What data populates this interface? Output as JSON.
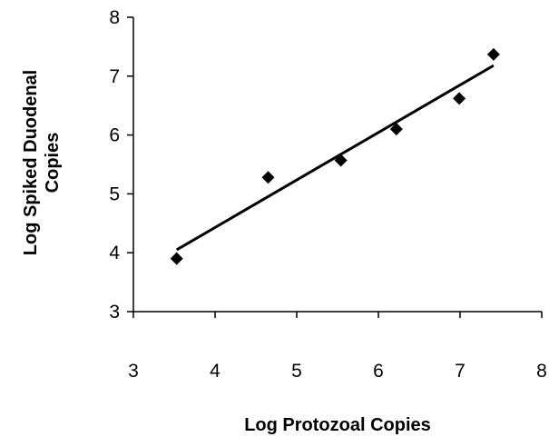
{
  "chart_data": {
    "type": "scatter",
    "title": "",
    "xlabel": "Log Protozoal Copies",
    "ylabel_lines": [
      "Log Spiked Duodenal",
      "Copies"
    ],
    "xlim": [
      3,
      8
    ],
    "ylim": [
      3,
      8
    ],
    "xticks": [
      3,
      4,
      5,
      6,
      7,
      8
    ],
    "yticks": [
      3,
      4,
      5,
      6,
      7,
      8
    ],
    "grid": false,
    "legend": "none",
    "marker": "diamond",
    "color": "#000000",
    "series": [
      {
        "x": [
          3.53,
          4.65,
          5.54,
          6.22,
          6.99,
          7.41
        ],
        "y": [
          3.9,
          5.28,
          5.57,
          6.1,
          6.62,
          7.37
        ]
      }
    ],
    "trendline": {
      "x": [
        3.53,
        7.41
      ],
      "y": [
        4.05,
        7.18
      ]
    }
  }
}
